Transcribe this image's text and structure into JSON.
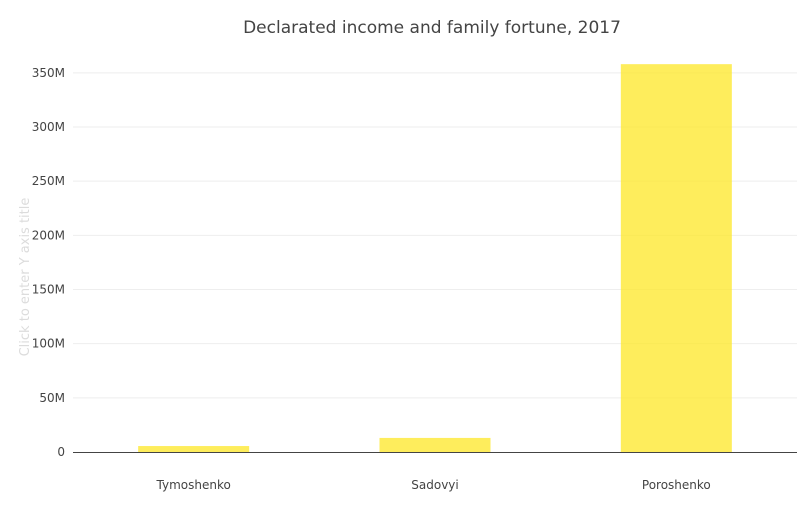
{
  "chart_data": {
    "type": "bar",
    "title": "Declarated income and family fortune, 2017",
    "ylabel": "Click to enter Y axis title",
    "xlabel": "",
    "categories": [
      "Tymoshenko",
      "Sadovyi",
      "Poroshenko"
    ],
    "values": [
      5500000,
      13000000,
      358000000
    ],
    "ylim": [
      0,
      360000000
    ],
    "yticks": [
      0,
      50000000,
      100000000,
      150000000,
      200000000,
      250000000,
      300000000,
      350000000
    ],
    "ytick_labels": [
      "0",
      "50M",
      "100M",
      "150M",
      "200M",
      "250M",
      "300M",
      "350M"
    ],
    "grid": true,
    "legend": "none",
    "bar_color": "#fde725"
  }
}
